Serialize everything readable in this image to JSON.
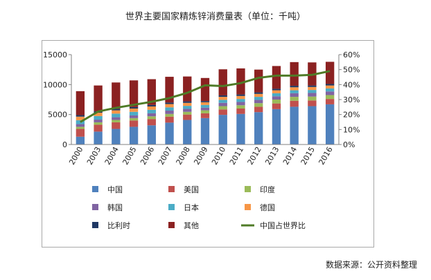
{
  "title": "世界主要国家精炼锌消费量表（单位：千吨）",
  "source": "数据来源：公开资料整理",
  "chart_data": {
    "type": "bar",
    "stacked": true,
    "categories": [
      "2000",
      "2003",
      "2004",
      "2005",
      "2006",
      "2007",
      "2008",
      "2009",
      "2010",
      "2011",
      "2012",
      "2013",
      "2014",
      "2015",
      "2016"
    ],
    "ylim": [
      0,
      15000
    ],
    "yticks": [
      0,
      5000,
      10000,
      15000
    ],
    "y2lim": [
      0,
      0.6
    ],
    "y2ticks": [
      "0%",
      "10%",
      "20%",
      "30%",
      "40%",
      "50%",
      "60%"
    ],
    "legend_position": "bottom",
    "series": [
      {
        "name": "中国",
        "color": "#4f81bd",
        "values": [
          1300,
          2150,
          2600,
          2950,
          3200,
          3650,
          4100,
          4400,
          4950,
          5100,
          5400,
          5900,
          6300,
          6400,
          6700
        ]
      },
      {
        "name": "美国",
        "color": "#c0504d",
        "values": [
          1300,
          1150,
          1100,
          1050,
          1050,
          1000,
          900,
          800,
          900,
          900,
          900,
          950,
          1000,
          950,
          900
        ]
      },
      {
        "name": "印度",
        "color": "#9bbb59",
        "values": [
          350,
          400,
          400,
          400,
          450,
          450,
          450,
          500,
          550,
          550,
          600,
          650,
          650,
          650,
          650
        ]
      },
      {
        "name": "韩国",
        "color": "#8064a2",
        "values": [
          450,
          450,
          450,
          450,
          500,
          550,
          500,
          450,
          550,
          550,
          550,
          550,
          600,
          600,
          600
        ]
      },
      {
        "name": "日本",
        "color": "#4bacc6",
        "values": [
          650,
          600,
          600,
          600,
          600,
          550,
          500,
          450,
          500,
          500,
          500,
          500,
          500,
          500,
          500
        ]
      },
      {
        "name": "德国",
        "color": "#f79646",
        "values": [
          600,
          550,
          550,
          550,
          550,
          550,
          500,
          450,
          500,
          500,
          500,
          500,
          500,
          500,
          500
        ]
      },
      {
        "name": "比利时",
        "color": "#1f3864",
        "values": [
          250,
          250,
          250,
          250,
          250,
          250,
          250,
          200,
          250,
          250,
          250,
          250,
          250,
          250,
          250
        ]
      },
      {
        "name": "其他",
        "color": "#8b2121",
        "values": [
          4000,
          4300,
          4400,
          4450,
          4300,
          4300,
          4150,
          3850,
          4350,
          4350,
          3800,
          3800,
          3950,
          3850,
          3700
        ]
      }
    ],
    "line_series": {
      "name": "中国占世界比",
      "color": "#4f7b27",
      "axis": "right",
      "values": [
        0.15,
        0.22,
        0.245,
        0.265,
        0.285,
        0.31,
        0.345,
        0.395,
        0.39,
        0.41,
        0.445,
        0.46,
        0.46,
        0.465,
        0.49
      ]
    }
  }
}
